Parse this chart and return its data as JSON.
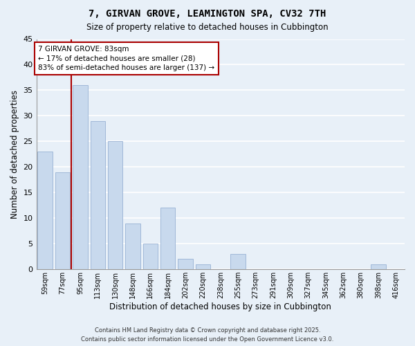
{
  "title": "7, GIRVAN GROVE, LEAMINGTON SPA, CV32 7TH",
  "subtitle": "Size of property relative to detached houses in Cubbington",
  "xlabel": "Distribution of detached houses by size in Cubbington",
  "ylabel": "Number of detached properties",
  "bar_color": "#c8d9ed",
  "bar_edge_color": "#a0b8d8",
  "background_color": "#e8f0f8",
  "grid_color": "#ffffff",
  "vline_color": "#aa0000",
  "categories": [
    "59sqm",
    "77sqm",
    "95sqm",
    "113sqm",
    "130sqm",
    "148sqm",
    "166sqm",
    "184sqm",
    "202sqm",
    "220sqm",
    "238sqm",
    "255sqm",
    "273sqm",
    "291sqm",
    "309sqm",
    "327sqm",
    "345sqm",
    "362sqm",
    "380sqm",
    "398sqm",
    "416sqm"
  ],
  "values": [
    23,
    19,
    36,
    29,
    25,
    9,
    5,
    12,
    2,
    1,
    0,
    3,
    0,
    0,
    0,
    0,
    0,
    0,
    0,
    1,
    0
  ],
  "ylim": [
    0,
    45
  ],
  "yticks": [
    0,
    5,
    10,
    15,
    20,
    25,
    30,
    35,
    40,
    45
  ],
  "vline_x": 1.5,
  "annotation_line1": "7 GIRVAN GROVE: 83sqm",
  "annotation_line2": "← 17% of detached houses are smaller (28)",
  "annotation_line3": "83% of semi-detached houses are larger (137) →",
  "footer_line1": "Contains HM Land Registry data © Crown copyright and database right 2025.",
  "footer_line2": "Contains public sector information licensed under the Open Government Licence v3.0."
}
